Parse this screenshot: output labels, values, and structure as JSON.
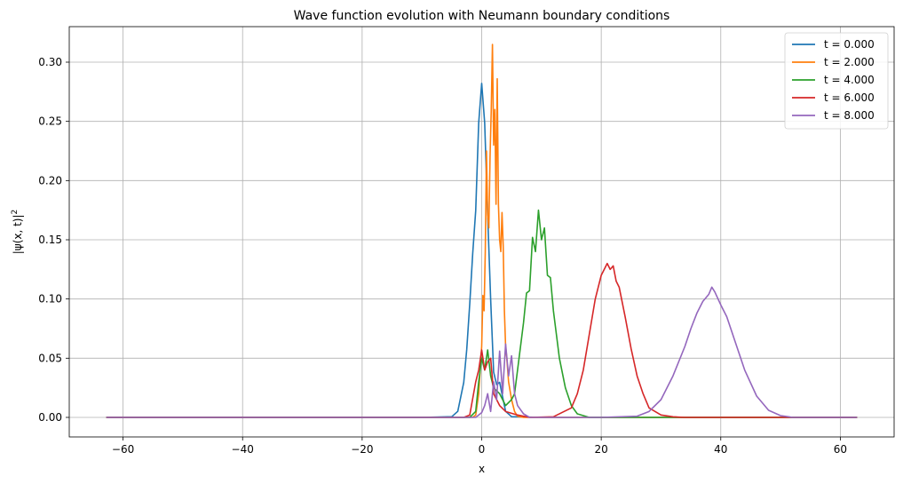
{
  "chart_data": {
    "type": "line",
    "title": "Wave function evolution with Neumann boundary conditions",
    "xlabel": "x",
    "ylabel": "|ψ(x, t)|",
    "ylabel_sup": "2",
    "xlim": [
      -69,
      69
    ],
    "ylim": [
      -0.0165,
      0.33
    ],
    "xticks": [
      -60,
      -40,
      -20,
      0,
      20,
      40,
      60
    ],
    "xtick_labels": [
      "−60",
      "−40",
      "−20",
      "0",
      "20",
      "40",
      "60"
    ],
    "yticks": [
      0.0,
      0.05,
      0.1,
      0.15,
      0.2,
      0.25,
      0.3
    ],
    "ytick_labels": [
      "0.00",
      "0.05",
      "0.10",
      "0.15",
      "0.20",
      "0.25",
      "0.30"
    ],
    "grid": true,
    "legend_position": "top-right",
    "series": [
      {
        "name": "t = 0.000",
        "color": "#1f77b4",
        "x": [
          -62.8,
          -10,
          -5,
          -4,
          -3,
          -2.5,
          -2,
          -1.5,
          -1,
          -0.5,
          0,
          0.5,
          1,
          1.5,
          2,
          2.5,
          3,
          4,
          5,
          10,
          62.8
        ],
        "y": [
          0,
          0,
          0.0006,
          0.0051,
          0.0296,
          0.0574,
          0.0958,
          0.1385,
          0.1747,
          0.2487,
          0.2821,
          0.2487,
          0.1711,
          0.0996,
          0.0382,
          0.0277,
          0.0296,
          0.0051,
          0.0006,
          0,
          0
        ]
      },
      {
        "name": "t = 2.000",
        "color": "#ff7f0e",
        "x": [
          -62.8,
          -3,
          -1.5,
          -1,
          -0.5,
          0,
          0.2,
          0.4,
          0.6,
          0.8,
          1.0,
          1.2,
          1.4,
          1.6,
          1.8,
          2.0,
          2.2,
          2.4,
          2.6,
          2.8,
          3.0,
          3.2,
          3.4,
          3.6,
          3.8,
          4.0,
          4.2,
          4.5,
          5.0,
          5.5,
          6,
          7,
          10,
          62.8
        ],
        "y": [
          0,
          0,
          0.0001,
          0.002,
          0.02,
          0.06,
          0.103,
          0.09,
          0.14,
          0.225,
          0.17,
          0.16,
          0.22,
          0.26,
          0.315,
          0.23,
          0.26,
          0.18,
          0.286,
          0.18,
          0.15,
          0.14,
          0.173,
          0.145,
          0.09,
          0.06,
          0.05,
          0.03,
          0.015,
          0.005,
          0.001,
          0,
          0,
          0
        ]
      },
      {
        "name": "t = 4.000",
        "color": "#2ca02c",
        "x": [
          -62.8,
          -2,
          -1,
          -0.5,
          0,
          0.5,
          1,
          1.5,
          2,
          3,
          4,
          5,
          5.5,
          6,
          6.5,
          7,
          7.5,
          8,
          8.5,
          9,
          9.5,
          10,
          10.5,
          11,
          11.5,
          12,
          12.5,
          13,
          14,
          15,
          16,
          18,
          62.8
        ],
        "y": [
          0,
          0,
          0.005,
          0.03,
          0.05,
          0.04,
          0.057,
          0.035,
          0.025,
          0.02,
          0.01,
          0.015,
          0.02,
          0.04,
          0.06,
          0.08,
          0.105,
          0.107,
          0.152,
          0.14,
          0.175,
          0.15,
          0.16,
          0.12,
          0.118,
          0.09,
          0.07,
          0.05,
          0.025,
          0.01,
          0.003,
          0,
          0
        ]
      },
      {
        "name": "t = 6.000",
        "color": "#d62728",
        "x": [
          -62.8,
          -3,
          -2,
          -1,
          -0.5,
          0,
          0.5,
          1,
          1.5,
          2,
          3,
          4,
          6,
          8,
          12,
          15,
          16,
          17,
          18,
          19,
          20,
          20.5,
          21,
          21.5,
          22,
          22.5,
          23,
          24,
          25,
          26,
          27,
          28,
          30,
          32,
          34,
          62.8
        ],
        "y": [
          0,
          0,
          0.002,
          0.03,
          0.04,
          0.057,
          0.04,
          0.047,
          0.05,
          0.02,
          0.01,
          0.005,
          0.002,
          0,
          0.0005,
          0.008,
          0.02,
          0.04,
          0.07,
          0.1,
          0.12,
          0.125,
          0.13,
          0.125,
          0.128,
          0.115,
          0.11,
          0.085,
          0.058,
          0.035,
          0.02,
          0.008,
          0.002,
          0.0005,
          0,
          0
        ]
      },
      {
        "name": "t = 8.000",
        "color": "#9467bd",
        "x": [
          -62.8,
          -1,
          0,
          0.5,
          1,
          1.5,
          2,
          2.5,
          3,
          3.5,
          4,
          4.5,
          5,
          5.5,
          6,
          7,
          8,
          20,
          26,
          28,
          30,
          32,
          34,
          35,
          36,
          37,
          38,
          38.5,
          39,
          40,
          41,
          42,
          43,
          44,
          46,
          48,
          50,
          52,
          62.8
        ],
        "y": [
          0,
          0,
          0.004,
          0.01,
          0.02,
          0.005,
          0.03,
          0.015,
          0.056,
          0.02,
          0.062,
          0.035,
          0.052,
          0.02,
          0.01,
          0.003,
          0,
          0,
          0.001,
          0.005,
          0.015,
          0.035,
          0.06,
          0.075,
          0.088,
          0.098,
          0.104,
          0.11,
          0.106,
          0.095,
          0.085,
          0.07,
          0.055,
          0.04,
          0.018,
          0.006,
          0.0015,
          0,
          0
        ]
      }
    ]
  }
}
